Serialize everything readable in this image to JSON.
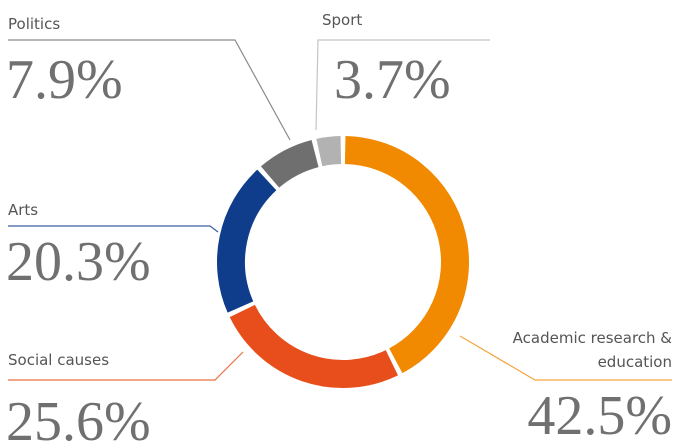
{
  "chart_data": {
    "type": "donut",
    "categories": [
      "Academic research & education",
      "Social causes",
      "Arts",
      "Politics",
      "Sport"
    ],
    "values": [
      42.5,
      25.6,
      20.3,
      7.9,
      3.7
    ],
    "value_labels": [
      "42.5%",
      "25.6%",
      "20.3%",
      "7.9%",
      "3.7%"
    ],
    "colors": [
      "#f18a00",
      "#e84e1b",
      "#0f3d8c",
      "#6f6f6f",
      "#b2b2b2"
    ]
  }
}
